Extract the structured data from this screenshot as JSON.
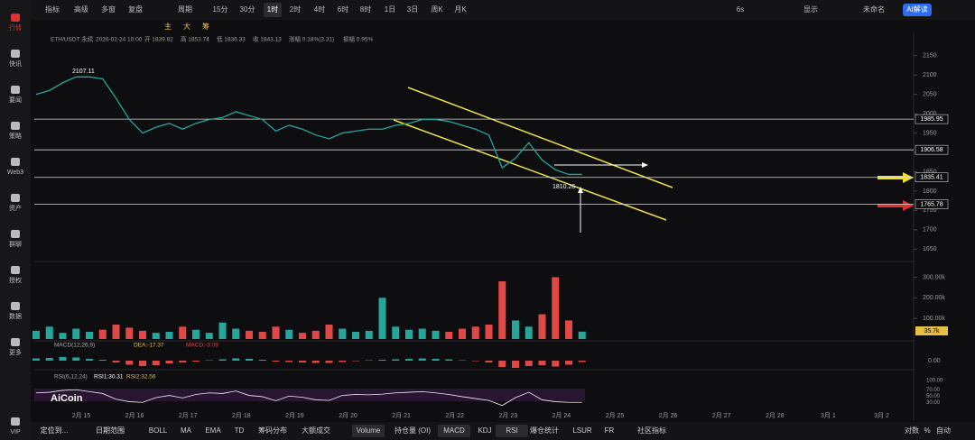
{
  "sidebar": {
    "items": [
      "行情",
      "快讯",
      "要闻",
      "策略",
      "Web3",
      "资产",
      "群聊",
      "授权",
      "数据",
      "更多",
      "VIP"
    ]
  },
  "toolbar": {
    "items": [
      "指标",
      "高级",
      "多窗",
      "复盘",
      "周期",
      "15分",
      "30分",
      "1时",
      "2时",
      "4时",
      "6时",
      "8时",
      "1日",
      "3日",
      "周K",
      "月K"
    ],
    "active": "1时",
    "right": [
      "6s",
      "显示",
      "未命名",
      "AI解读"
    ],
    "row2": [
      "主",
      "大",
      "筹"
    ]
  },
  "info": [
    "ETH/USDT 永续",
    "2026-02-24 10:00",
    "开 1839.82",
    "高 1853.74",
    "低 1836.33",
    "收 1843.13",
    "涨幅 0.18%(3.31)",
    "振幅 0.95%"
  ],
  "price_chart": {
    "ylim": [
      1625,
      2175
    ],
    "yticks": [
      1650,
      1700,
      1750,
      1800,
      1850,
      1900,
      1950,
      2000,
      2050,
      2100,
      2150
    ],
    "close": [
      2050,
      2060,
      2080,
      2095,
      2095,
      2090,
      2040,
      1985,
      1950,
      1965,
      1975,
      1960,
      1975,
      1985,
      1990,
      2005,
      1995,
      1985,
      1955,
      1970,
      1960,
      1945,
      1935,
      1950,
      1955,
      1960,
      1960,
      1970,
      1975,
      1985,
      1985,
      1980,
      1970,
      1960,
      1945,
      1860,
      1885,
      1925,
      1880,
      1855,
      1843,
      1843
    ],
    "color": "#26a69a",
    "levels": [
      {
        "value": 1985.95,
        "label": "1985.95"
      },
      {
        "value": 1906.58,
        "label": "1906.58"
      },
      {
        "value": 1835.41,
        "label": "1835.41"
      },
      {
        "value": 1765.78,
        "label": "1765.78"
      }
    ],
    "high_label": "2107.11",
    "low_label": "1810.26",
    "x_labels": [
      "2月 15",
      "2月 16",
      "2月 17",
      "2月 18",
      "2月 19",
      "2月 20",
      "2月 21",
      "2月 22",
      "2月 23",
      "2月 24",
      "2月 25",
      "2月 26",
      "2月 27",
      "2月 28",
      "3月 1",
      "3月 2"
    ]
  },
  "volume": {
    "ylim": [
      0,
      350000
    ],
    "yticks": [
      {
        "value": 100000,
        "label": "100.00k"
      },
      {
        "value": 200000,
        "label": "200.00k"
      },
      {
        "value": 300000,
        "label": "300.00k"
      }
    ],
    "values": [
      40000,
      60000,
      30000,
      50000,
      35000,
      45000,
      70000,
      55000,
      40000,
      30000,
      35000,
      60000,
      45000,
      30000,
      80000,
      50000,
      40000,
      35000,
      60000,
      45000,
      30000,
      40000,
      70000,
      50000,
      35000,
      40000,
      200000,
      60000,
      45000,
      50000,
      40000,
      35000,
      50000,
      60000,
      70000,
      280000,
      90000,
      60000,
      120000,
      300000,
      90000,
      35700
    ],
    "last_label": "35.7k"
  },
  "macd": {
    "title": "MACD(12,26,9)",
    "dea": "DEA:-17.37",
    "macd": "MACD:-3.09",
    "yticks": [
      {
        "value": 0,
        "label": "0.00"
      }
    ],
    "hist": [
      5,
      6,
      8,
      7,
      4,
      2,
      -4,
      -9,
      -12,
      -10,
      -6,
      -4,
      -2,
      1,
      3,
      5,
      4,
      2,
      -2,
      -3,
      -4,
      -5,
      -5,
      -3,
      -1,
      1,
      2,
      3,
      4,
      5,
      4,
      3,
      1,
      -1,
      -4,
      -14,
      -16,
      -12,
      -10,
      -13,
      -9,
      -3
    ]
  },
  "rsi": {
    "title": "RSI(6,12,24)",
    "rsi1": "RSI1:30.31",
    "rsi2": "RSI2:32.56",
    "ylim": [
      25,
      105
    ],
    "yticks": [
      {
        "value": 100,
        "label": "100.00"
      },
      {
        "value": 70,
        "label": "70.00"
      },
      {
        "value": 50,
        "label": "50.00"
      },
      {
        "value": 30,
        "label": "30.00"
      }
    ],
    "values": [
      60,
      62,
      68,
      70,
      64,
      58,
      40,
      32,
      30,
      45,
      52,
      44,
      55,
      60,
      58,
      66,
      52,
      48,
      35,
      50,
      46,
      38,
      36,
      52,
      55,
      54,
      56,
      60,
      62,
      64,
      60,
      55,
      48,
      42,
      36,
      20,
      45,
      62,
      38,
      32,
      30,
      30
    ]
  },
  "bottom": {
    "left": [
      "定位到...",
      "日期范围"
    ],
    "items": [
      "BOLL",
      "MA",
      "EMA",
      "TD",
      "筹码分布",
      "大额成交",
      "Volume",
      "持仓量 (OI)",
      "MACD",
      "KDJ",
      "RSI",
      "爆仓统计",
      "LSUR",
      "FR",
      "社区指标"
    ],
    "right": [
      "对数",
      "%",
      "自动"
    ]
  },
  "watermark": "AiCoin"
}
